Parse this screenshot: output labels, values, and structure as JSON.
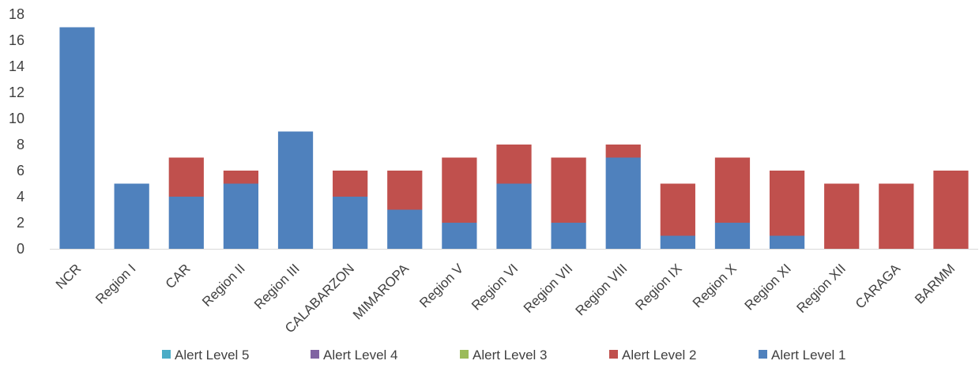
{
  "chart_data": {
    "type": "bar",
    "stacked": true,
    "categories": [
      "NCR",
      "Region I",
      "CAR",
      "Region II",
      "Region III",
      "CALABARZON",
      "MIMAROPA",
      "Region V",
      "Region VI",
      "Region VII",
      "Region VIII",
      "Region IX",
      "Region X",
      "Region XI",
      "Region XII",
      "CARAGA",
      "BARMM"
    ],
    "series": [
      {
        "name": "Alert Level 5",
        "color": "#4bacc6",
        "values": [
          0,
          0,
          0,
          0,
          0,
          0,
          0,
          0,
          0,
          0,
          0,
          0,
          0,
          0,
          0,
          0,
          0
        ]
      },
      {
        "name": "Alert Level 4",
        "color": "#8064a2",
        "values": [
          0,
          0,
          0,
          0,
          0,
          0,
          0,
          0,
          0,
          0,
          0,
          0,
          0,
          0,
          0,
          0,
          0
        ]
      },
      {
        "name": "Alert Level 3",
        "color": "#9bbb59",
        "values": [
          0,
          0,
          0,
          0,
          0,
          0,
          0,
          0,
          0,
          0,
          0,
          0,
          0,
          0,
          0,
          0,
          0
        ]
      },
      {
        "name": "Alert Level 2",
        "color": "#c0504d",
        "values": [
          0,
          0,
          3,
          1,
          0,
          2,
          3,
          5,
          3,
          5,
          1,
          4,
          5,
          5,
          5,
          5,
          6
        ]
      },
      {
        "name": "Alert Level 1",
        "color": "#4f81bd",
        "values": [
          17,
          5,
          4,
          5,
          9,
          4,
          3,
          2,
          5,
          2,
          7,
          1,
          2,
          1,
          0,
          0,
          0
        ]
      }
    ],
    "stack_order": [
      "Alert Level 1",
      "Alert Level 2",
      "Alert Level 3",
      "Alert Level 4",
      "Alert Level 5"
    ],
    "y_ticks": [
      "0",
      "2",
      "4",
      "6",
      "8",
      "10",
      "12",
      "14",
      "16",
      "18"
    ],
    "ylim": [
      0,
      18
    ],
    "title": "",
    "xlabel": "",
    "ylabel": "",
    "grid": false,
    "legend_position": "bottom"
  }
}
